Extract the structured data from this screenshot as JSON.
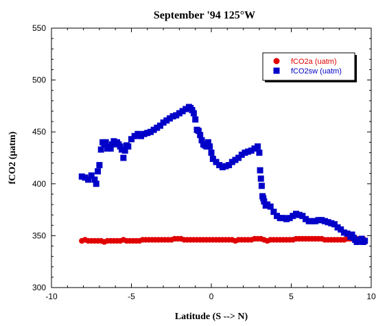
{
  "chart_data": {
    "type": "scatter",
    "title": "September '94 125°W",
    "xlabel": "Latitude (S --> N)",
    "ylabel": "fCO2 (µatm)",
    "xlim": [
      -10,
      10
    ],
    "ylim": [
      300,
      550
    ],
    "xticks": [
      -10,
      -5,
      0,
      5,
      10
    ],
    "yticks": [
      300,
      350,
      400,
      450,
      500,
      550
    ],
    "grid": false,
    "legend_position": "top-right",
    "series": [
      {
        "name": "fCO2a (uatm)",
        "color": "#e00000",
        "marker": "circle",
        "x": [
          -8.1,
          -7.9,
          -7.7,
          -7.5,
          -7.3,
          -7.1,
          -6.9,
          -6.7,
          -6.5,
          -6.3,
          -6.1,
          -5.9,
          -5.7,
          -5.5,
          -5.3,
          -5.1,
          -4.9,
          -4.7,
          -4.5,
          -4.3,
          -4.1,
          -3.9,
          -3.7,
          -3.5,
          -3.3,
          -3.1,
          -2.9,
          -2.7,
          -2.5,
          -2.3,
          -2.1,
          -1.9,
          -1.7,
          -1.5,
          -1.3,
          -1.1,
          -0.9,
          -0.7,
          -0.5,
          -0.3,
          -0.1,
          0.1,
          0.3,
          0.5,
          0.7,
          0.9,
          1.1,
          1.3,
          1.5,
          1.7,
          1.9,
          2.1,
          2.3,
          2.5,
          2.7,
          2.9,
          3.1,
          3.3,
          3.5,
          3.7,
          3.9,
          4.1,
          4.3,
          4.5,
          4.7,
          4.9,
          5.1,
          5.3,
          5.5,
          5.7,
          5.9,
          6.1,
          6.3,
          6.5,
          6.7,
          6.9,
          7.1,
          7.3,
          7.5,
          7.7,
          7.9,
          8.1,
          8.3,
          8.5,
          8.7,
          8.9,
          9.1,
          9.3,
          9.5
        ],
        "y": [
          345,
          346,
          345,
          345,
          345,
          345,
          345,
          344,
          345,
          345,
          345,
          345,
          345,
          346,
          345,
          345,
          345,
          345,
          345,
          346,
          346,
          346,
          346,
          346,
          346,
          346,
          346,
          346,
          346,
          347,
          347,
          347,
          346,
          346,
          346,
          346,
          346,
          346,
          346,
          346,
          346,
          346,
          346,
          346,
          346,
          346,
          346,
          346,
          345,
          346,
          346,
          346,
          346,
          346,
          347,
          347,
          347,
          346,
          345,
          346,
          346,
          346,
          346,
          346,
          346,
          346,
          346,
          347,
          347,
          347,
          347,
          347,
          347,
          347,
          347,
          347,
          346,
          346,
          346,
          346,
          346,
          346,
          346,
          347,
          347,
          347,
          347,
          347,
          347
        ]
      },
      {
        "name": "fCO2sw (uatm)",
        "color": "#0000c8",
        "marker": "square",
        "x": [
          -8.1,
          -7.9,
          -7.7,
          -7.5,
          -7.3,
          -7.2,
          -7.1,
          -7.0,
          -6.9,
          -6.8,
          -6.7,
          -6.6,
          -6.5,
          -6.4,
          -6.3,
          -6.2,
          -6.1,
          -6.0,
          -5.9,
          -5.8,
          -5.7,
          -5.6,
          -5.5,
          -5.4,
          -5.3,
          -5.2,
          -5.0,
          -4.8,
          -4.6,
          -4.5,
          -4.4,
          -4.2,
          -4.0,
          -3.8,
          -3.6,
          -3.4,
          -3.2,
          -3.0,
          -2.8,
          -2.6,
          -2.4,
          -2.2,
          -2.0,
          -1.8,
          -1.6,
          -1.4,
          -1.3,
          -1.2,
          -1.1,
          -1.0,
          -0.9,
          -0.8,
          -0.7,
          -0.6,
          -0.5,
          -0.4,
          -0.3,
          -0.2,
          -0.1,
          0.0,
          0.1,
          0.3,
          0.5,
          0.7,
          0.9,
          1.1,
          1.3,
          1.5,
          1.7,
          1.9,
          2.1,
          2.3,
          2.5,
          2.7,
          2.9,
          3.0,
          3.05,
          3.1,
          3.15,
          3.2,
          3.25,
          3.3,
          3.4,
          3.5,
          3.7,
          3.9,
          4.1,
          4.3,
          4.5,
          4.7,
          4.9,
          5.1,
          5.3,
          5.5,
          5.7,
          5.9,
          6.1,
          6.3,
          6.5,
          6.7,
          6.9,
          7.1,
          7.3,
          7.5,
          7.7,
          7.9,
          8.1,
          8.3,
          8.5,
          8.7,
          8.8,
          8.9,
          9.0,
          9.1,
          9.2,
          9.3,
          9.4,
          9.5,
          9.6
        ],
        "y": [
          407,
          406,
          404,
          408,
          404,
          400,
          412,
          418,
          433,
          440,
          438,
          440,
          434,
          436,
          434,
          438,
          441,
          439,
          440,
          438,
          436,
          433,
          425,
          432,
          437,
          436,
          443,
          446,
          448,
          447,
          446,
          448,
          449,
          450,
          452,
          454,
          456,
          459,
          461,
          463,
          465,
          466,
          468,
          470,
          472,
          474,
          473,
          471,
          468,
          462,
          452,
          451,
          447,
          442,
          438,
          437,
          436,
          440,
          436,
          430,
          424,
          421,
          418,
          416,
          417,
          418,
          421,
          423,
          425,
          428,
          430,
          431,
          432,
          434,
          436,
          430,
          413,
          405,
          398,
          388,
          386,
          383,
          379,
          380,
          378,
          373,
          369,
          367,
          367,
          366,
          367,
          369,
          371,
          370,
          369,
          366,
          364,
          364,
          364,
          365,
          365,
          364,
          363,
          362,
          361,
          358,
          356,
          353,
          352,
          349,
          351,
          348,
          346,
          344,
          345,
          346,
          347,
          344,
          345
        ]
      }
    ]
  }
}
